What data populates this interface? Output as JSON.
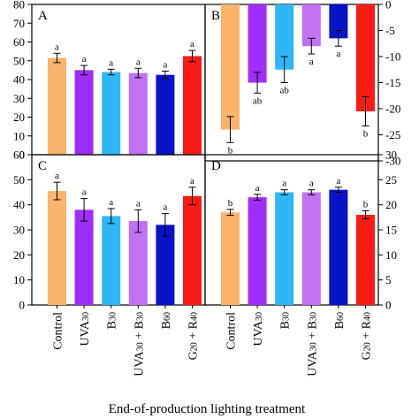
{
  "chart_data": [
    {
      "panel": "A",
      "type": "bar",
      "categories": [
        "Control",
        "UVA30",
        "B30",
        "UVA30 + B30",
        "B60",
        "G20 + R40"
      ],
      "values": [
        51.5,
        45,
        44,
        43.5,
        42.5,
        52.5
      ],
      "errors": [
        2.5,
        2.5,
        1.5,
        2.5,
        2.0,
        3.0
      ],
      "significance": [
        "a",
        "a",
        "a",
        "a",
        "a",
        "a"
      ],
      "ylim": [
        0,
        80
      ],
      "yticks": [
        "0",
        "10",
        "20",
        "30",
        "40",
        "50",
        "60",
        "70",
        "80"
      ],
      "y_axis_side": "left"
    },
    {
      "panel": "B",
      "type": "bar",
      "categories": [
        "Control",
        "UVA30",
        "B30",
        "UVA30 + B30",
        "B60",
        "G20 + R40"
      ],
      "values": [
        -24,
        -15,
        -12.5,
        -8,
        -6.5,
        -20.5
      ],
      "errors": [
        2.5,
        2.0,
        2.5,
        1.5,
        1.5,
        2.8
      ],
      "significance": [
        "b",
        "ab",
        "ab",
        "a",
        "a",
        "b"
      ],
      "ylim": [
        -30,
        0
      ],
      "yticks": [
        "0",
        "-5",
        "-10",
        "-15",
        "-20",
        "-25",
        "-30"
      ],
      "y_axis_side": "right"
    },
    {
      "panel": "C",
      "type": "bar",
      "categories": [
        "Control",
        "UVA30",
        "B30",
        "UVA30 + B30",
        "B60",
        "G20 + R40"
      ],
      "values": [
        45.5,
        38,
        35.5,
        33.5,
        32,
        43.5
      ],
      "errors": [
        3.5,
        4.5,
        3.0,
        4.5,
        4.5,
        3.5
      ],
      "significance": [
        "a",
        "a",
        "a",
        "a",
        "a",
        "a"
      ],
      "ylim": [
        0,
        60
      ],
      "yticks": [
        "0",
        "10",
        "20",
        "30",
        "40",
        "50",
        "60"
      ],
      "y_axis_side": "left"
    },
    {
      "panel": "D",
      "type": "bar",
      "categories": [
        "Control",
        "UVA30",
        "B30",
        "UVA30 + B30",
        "B60",
        "G20 + R40"
      ],
      "values": [
        18.5,
        21.5,
        22.5,
        22.5,
        23,
        18
      ],
      "errors": [
        0.6,
        0.6,
        0.5,
        0.5,
        0.5,
        0.8
      ],
      "significance": [
        "b",
        "a",
        "a",
        "a",
        "a",
        "b"
      ],
      "ylim": [
        0,
        30
      ],
      "yticks": [
        "0",
        "5",
        "10",
        "15",
        "20",
        "25",
        "30"
      ],
      "y_axis_side": "right"
    }
  ],
  "colors": {
    "Control": "#f9b36a",
    "UVA30": "#a12dfa",
    "B30": "#2fb7f5",
    "UVA30 + B30": "#c171f2",
    "B60": "#0b13c8",
    "G20 + R40": "#f81b16"
  },
  "x_tick_labels": [
    {
      "main": "Control",
      "sub": ""
    },
    {
      "main": "UVA",
      "sub": "30"
    },
    {
      "main": "B",
      "sub": "30"
    },
    {
      "main": "UVA",
      "sub": "30",
      "main2": " + B",
      "sub2": "30"
    },
    {
      "main": "B",
      "sub": "60"
    },
    {
      "main": "G",
      "sub": "20",
      "main2": " + R",
      "sub2": "40"
    }
  ],
  "xlabel": "End-of-production lighting treatment"
}
